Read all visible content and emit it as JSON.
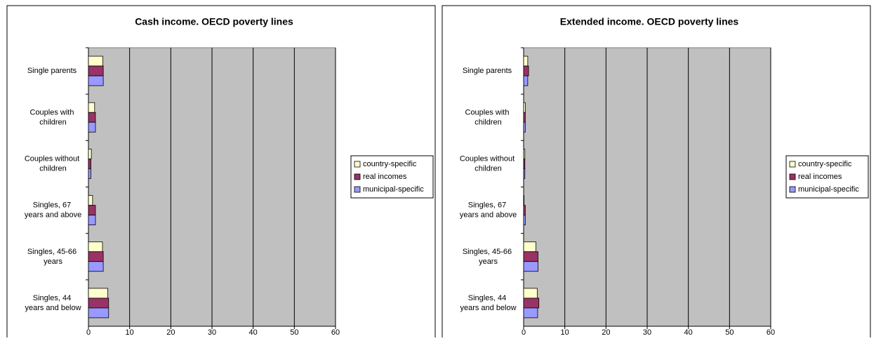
{
  "chart_data": [
    {
      "type": "hbar",
      "title": "Cash income. OECD poverty lines",
      "categories": [
        "Single parents",
        "Couples with children",
        "Couples without children",
        "Singles, 67 years and above",
        "Singles, 45-66 years",
        "Singles, 44 years and below"
      ],
      "series": [
        {
          "name": "country-specific",
          "color": "#ffffcc",
          "values": [
            3.5,
            1.5,
            0.7,
            1.0,
            3.4,
            4.7
          ]
        },
        {
          "name": "real incomes",
          "color": "#993366",
          "values": [
            3.6,
            1.7,
            0.6,
            1.7,
            3.6,
            4.9
          ]
        },
        {
          "name": "municipal-specific",
          "color": "#9999ff",
          "values": [
            3.6,
            1.7,
            0.6,
            1.7,
            3.6,
            4.9
          ]
        }
      ],
      "xlim": [
        0,
        60
      ],
      "xticks": [
        0,
        10,
        20,
        30,
        40,
        50,
        60
      ],
      "grid": true,
      "legend": "right"
    },
    {
      "type": "hbar",
      "title": "Extended income. OECD poverty lines",
      "categories": [
        "Single parents",
        "Couples with children",
        "Couples without children",
        "Singles, 67 years and above",
        "Singles, 45-66 years",
        "Singles, 44 years and below"
      ],
      "series": [
        {
          "name": "country-specific",
          "color": "#ffffcc",
          "values": [
            1.0,
            0.4,
            0.3,
            0.1,
            3.0,
            3.3
          ]
        },
        {
          "name": "real incomes",
          "color": "#993366",
          "values": [
            1.2,
            0.4,
            0.3,
            0.4,
            3.5,
            3.7
          ]
        },
        {
          "name": "municipal-specific",
          "color": "#9999ff",
          "values": [
            1.0,
            0.4,
            0.3,
            0.4,
            3.5,
            3.4
          ]
        }
      ],
      "xlim": [
        0,
        60
      ],
      "xticks": [
        0,
        10,
        20,
        30,
        40,
        50,
        60
      ],
      "grid": true,
      "legend": "right"
    }
  ]
}
